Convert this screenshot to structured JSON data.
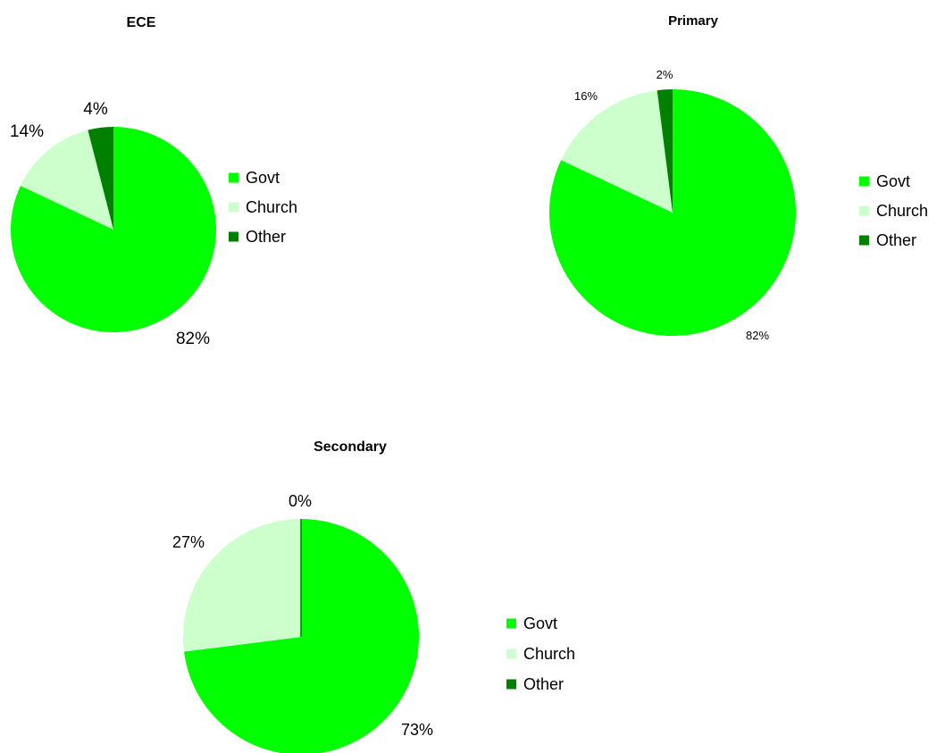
{
  "colors": {
    "govt": "#00ff00",
    "church": "#ccffcc",
    "other": "#008000"
  },
  "chart_data": [
    {
      "type": "pie",
      "title": "ECE",
      "categories": [
        "Govt",
        "Church",
        "Other"
      ],
      "values": [
        82,
        14,
        4
      ],
      "labels": [
        "82%",
        "14%",
        "4%"
      ],
      "legend": [
        "Govt",
        "Church",
        "Other"
      ],
      "legend_position": "right"
    },
    {
      "type": "pie",
      "title": "Primary",
      "categories": [
        "Govt",
        "Church",
        "Other"
      ],
      "values": [
        82,
        16,
        2
      ],
      "labels": [
        "82%",
        "16%",
        "2%"
      ],
      "legend": [
        "Govt",
        "Church",
        "Other"
      ],
      "legend_position": "right"
    },
    {
      "type": "pie",
      "title": "Secondary",
      "categories": [
        "Govt",
        "Church",
        "Other"
      ],
      "values": [
        73,
        27,
        0
      ],
      "labels": [
        "73%",
        "27%",
        "0%"
      ],
      "legend": [
        "Govt",
        "Church",
        "Other"
      ],
      "legend_position": "right"
    }
  ]
}
